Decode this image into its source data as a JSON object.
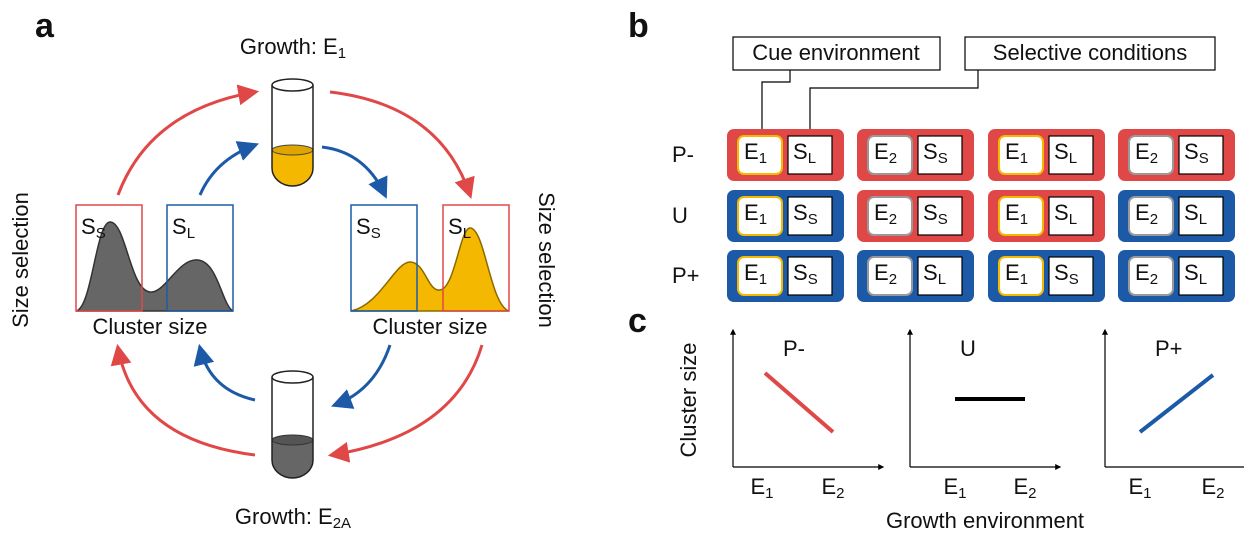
{
  "panel_a": {
    "letter": "a",
    "top_growth": {
      "text": "Growth: E",
      "sub": "1"
    },
    "bottom_growth": {
      "text": "Growth: E",
      "sub": "2A"
    },
    "size_selection_left": "Size selection",
    "size_selection_right": "Size selection",
    "left_plot": {
      "box1": {
        "text": "S",
        "sub": "S"
      },
      "box2": {
        "text": "S",
        "sub": "L"
      },
      "xlabel": "Cluster size"
    },
    "right_plot": {
      "box1": {
        "text": "S",
        "sub": "S"
      },
      "box2": {
        "text": "S",
        "sub": "L"
      },
      "xlabel": "Cluster size"
    }
  },
  "panel_b": {
    "letter": "b",
    "cue_label": "Cue environment",
    "selective_label": "Selective conditions",
    "rows": [
      {
        "label": "P-",
        "cells": [
          {
            "env": {
              "text": "E",
              "sub": "1",
              "border": "#f5b800"
            },
            "sel": {
              "text": "S",
              "sub": "L"
            },
            "color": "#e04848"
          },
          {
            "env": {
              "text": "E",
              "sub": "2",
              "border": "#999999"
            },
            "sel": {
              "text": "S",
              "sub": "S"
            },
            "color": "#e04848"
          },
          {
            "env": {
              "text": "E",
              "sub": "1",
              "border": "#f5b800"
            },
            "sel": {
              "text": "S",
              "sub": "L"
            },
            "color": "#e04848"
          },
          {
            "env": {
              "text": "E",
              "sub": "2",
              "border": "#999999"
            },
            "sel": {
              "text": "S",
              "sub": "S"
            },
            "color": "#e04848"
          }
        ]
      },
      {
        "label": "U",
        "cells": [
          {
            "env": {
              "text": "E",
              "sub": "1",
              "border": "#f5b800"
            },
            "sel": {
              "text": "S",
              "sub": "S"
            },
            "color": "#1c5aa8"
          },
          {
            "env": {
              "text": "E",
              "sub": "2",
              "border": "#999999"
            },
            "sel": {
              "text": "S",
              "sub": "S"
            },
            "color": "#e04848"
          },
          {
            "env": {
              "text": "E",
              "sub": "1",
              "border": "#f5b800"
            },
            "sel": {
              "text": "S",
              "sub": "L"
            },
            "color": "#e04848"
          },
          {
            "env": {
              "text": "E",
              "sub": "2",
              "border": "#999999"
            },
            "sel": {
              "text": "S",
              "sub": "L"
            },
            "color": "#1c5aa8"
          }
        ]
      },
      {
        "label": "P+",
        "cells": [
          {
            "env": {
              "text": "E",
              "sub": "1",
              "border": "#f5b800"
            },
            "sel": {
              "text": "S",
              "sub": "S"
            },
            "color": "#1c5aa8"
          },
          {
            "env": {
              "text": "E",
              "sub": "2",
              "border": "#999999"
            },
            "sel": {
              "text": "S",
              "sub": "L"
            },
            "color": "#1c5aa8"
          },
          {
            "env": {
              "text": "E",
              "sub": "1",
              "border": "#f5b800"
            },
            "sel": {
              "text": "S",
              "sub": "S"
            },
            "color": "#1c5aa8"
          },
          {
            "env": {
              "text": "E",
              "sub": "2",
              "border": "#999999"
            },
            "sel": {
              "text": "S",
              "sub": "L"
            },
            "color": "#1c5aa8"
          }
        ]
      }
    ]
  },
  "panel_c": {
    "letter": "c",
    "ylabel": "Cluster size",
    "xlabel": "Growth environment",
    "plots": [
      {
        "title": "P-",
        "color": "#e04848",
        "xticks": [
          {
            "text": "E",
            "sub": "1"
          },
          {
            "text": "E",
            "sub": "2"
          }
        ]
      },
      {
        "title": "U",
        "color": "#000000",
        "xticks": [
          {
            "text": "E",
            "sub": "1"
          },
          {
            "text": "E",
            "sub": "2"
          }
        ]
      },
      {
        "title": "P+",
        "color": "#1c5aa8",
        "xticks": [
          {
            "text": "E",
            "sub": "1"
          },
          {
            "text": "E",
            "sub": "2"
          }
        ]
      }
    ]
  }
}
